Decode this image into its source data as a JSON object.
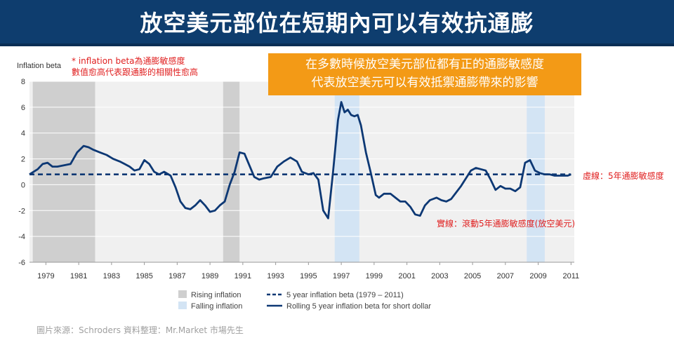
{
  "title": "放空美元部位在短期內可以有效抗通膨",
  "note_lines": [
    "* inflation  beta為通膨敏感度",
    "數值愈高代表跟通膨的相關性愈高"
  ],
  "callout_lines": [
    "在多數時候放空美元部位都有正的通膨敏感度",
    "代表放空美元可以有效抵禦通膨帶來的影響"
  ],
  "dashed_label": "虛線：5年通膨敏感度",
  "solid_label": "實線：滾動5年通膨敏感度(放空美元)",
  "source": "圖片來源：Schroders     資料整理：Mr.Market 市場先生",
  "colors": {
    "title_bg": "#0e3d6e",
    "callout_bg": "#f39a16",
    "line": "#0d3874",
    "rising": "#cfcfcf",
    "falling": "#d3e4f4",
    "annotation": "#e02020"
  },
  "chart_data": {
    "type": "line",
    "ylabel": "Inflation beta",
    "ylim": [
      -6,
      8
    ],
    "xlim": [
      1978,
      2011.2
    ],
    "y_ticks": [
      "8",
      "6",
      "4",
      "2",
      "0",
      "-2",
      "-4",
      "-6"
    ],
    "x_ticks": [
      "1979",
      "1981",
      "1983",
      "1985",
      "1987",
      "1989",
      "1991",
      "1993",
      "1995",
      "1997",
      "1999",
      "2001",
      "2003",
      "2005",
      "2007",
      "2009",
      "2011"
    ],
    "shaded_periods": [
      {
        "kind": "rising",
        "start": 1978.2,
        "end": 1982.0
      },
      {
        "kind": "rising",
        "start": 1989.8,
        "end": 1990.8
      },
      {
        "kind": "falling",
        "start": 1996.6,
        "end": 1998.1
      },
      {
        "kind": "falling",
        "start": 2008.3,
        "end": 2009.4
      }
    ],
    "series": [
      {
        "name": "5 year inflation beta (1979 – 2011)",
        "style": "dashed",
        "x": [
          1978,
          2011
        ],
        "y": [
          0.8,
          0.8
        ]
      },
      {
        "name": "Rolling 5 year inflation beta for short dollar",
        "style": "solid",
        "x": [
          1978,
          1978.5,
          1978.8,
          1979.1,
          1979.4,
          1979.7,
          1980.1,
          1980.5,
          1980.9,
          1981.3,
          1981.6,
          1981.9,
          1982.3,
          1982.7,
          1983.1,
          1983.5,
          1983.8,
          1984.1,
          1984.4,
          1984.7,
          1985.0,
          1985.3,
          1985.6,
          1985.9,
          1986.2,
          1986.6,
          1986.9,
          1987.2,
          1987.5,
          1987.8,
          1988.1,
          1988.4,
          1988.7,
          1989.0,
          1989.3,
          1989.6,
          1989.9,
          1990.2,
          1990.5,
          1990.8,
          1991.1,
          1991.4,
          1991.7,
          1992.0,
          1992.3,
          1992.7,
          1993.1,
          1993.5,
          1993.9,
          1994.3,
          1994.6,
          1995.0,
          1995.3,
          1995.6,
          1995.9,
          1996.2,
          1996.5,
          1996.8,
          1997.0,
          1997.2,
          1997.4,
          1997.6,
          1997.8,
          1998.0,
          1998.2,
          1998.5,
          1998.8,
          1999.1,
          1999.3,
          1999.6,
          2000.0,
          2000.3,
          2000.6,
          2000.9,
          2001.2,
          2001.5,
          2001.8,
          2002.1,
          2002.4,
          2002.8,
          2003.1,
          2003.4,
          2003.7,
          2004.0,
          2004.3,
          2004.6,
          2004.9,
          2005.2,
          2005.5,
          2005.8,
          2006.1,
          2006.4,
          2006.7,
          2007.0,
          2007.3,
          2007.6,
          2007.9,
          2008.2,
          2008.5,
          2008.8,
          2009.1,
          2009.4,
          2009.7,
          2010.0,
          2010.4,
          2010.8,
          2011.0
        ],
        "y": [
          0.8,
          1.2,
          1.6,
          1.7,
          1.4,
          1.4,
          1.5,
          1.6,
          2.5,
          3.0,
          2.9,
          2.7,
          2.5,
          2.3,
          2.0,
          1.8,
          1.6,
          1.4,
          1.1,
          1.2,
          1.9,
          1.6,
          1.0,
          0.8,
          1.0,
          0.7,
          -0.2,
          -1.3,
          -1.8,
          -1.9,
          -1.6,
          -1.2,
          -1.6,
          -2.1,
          -2.0,
          -1.6,
          -1.3,
          0.0,
          1.0,
          2.5,
          2.4,
          1.5,
          0.6,
          0.4,
          0.5,
          0.6,
          1.4,
          1.8,
          2.1,
          1.8,
          1.0,
          0.8,
          0.9,
          0.4,
          -2.0,
          -2.6,
          1.0,
          5.0,
          6.4,
          5.6,
          5.8,
          5.4,
          5.3,
          5.4,
          4.6,
          2.5,
          0.9,
          -0.8,
          -1.0,
          -0.7,
          -0.7,
          -1.0,
          -1.3,
          -1.3,
          -1.7,
          -2.3,
          -2.4,
          -1.6,
          -1.2,
          -1.0,
          -1.2,
          -1.3,
          -1.1,
          -0.6,
          -0.1,
          0.5,
          1.1,
          1.3,
          1.2,
          1.1,
          0.4,
          -0.4,
          -0.1,
          -0.3,
          -0.3,
          -0.5,
          -0.2,
          1.7,
          1.9,
          1.1,
          0.9,
          0.8,
          0.8,
          0.7,
          0.7,
          0.7,
          0.8
        ]
      }
    ],
    "legend": [
      {
        "label": "Rising inflation",
        "kind": "swatch-rising"
      },
      {
        "label": "Falling inflation",
        "kind": "swatch-falling"
      },
      {
        "label": "5 year inflation beta (1979 – 2011)",
        "kind": "dashed"
      },
      {
        "label": "Rolling 5 year inflation beta for short dollar",
        "kind": "solid"
      }
    ]
  }
}
